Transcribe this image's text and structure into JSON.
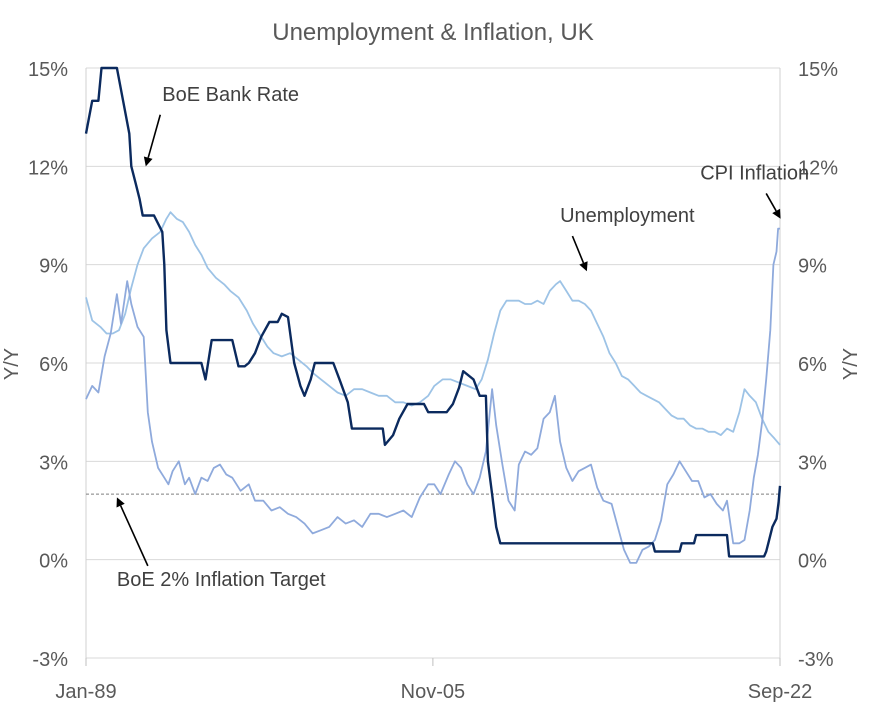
{
  "chart_data": {
    "type": "line",
    "title": "Unemployment & Inflation, UK",
    "ylabel_left": "Y/Y",
    "ylabel_right": "Y/Y",
    "ylim": [
      -3,
      15
    ],
    "yticks": [
      "-3%",
      "0%",
      "3%",
      "6%",
      "9%",
      "12%",
      "15%"
    ],
    "ytick_values": [
      -3,
      0,
      3,
      6,
      9,
      12,
      15
    ],
    "xlim": [
      1989.0,
      2022.67
    ],
    "xticks": [
      "Jan-89",
      "Nov-05",
      "Sep-22"
    ],
    "xtick_values": [
      1989.0,
      2005.83,
      2022.67
    ],
    "grid": true,
    "colors": {
      "bank_rate": "#0b2a5e",
      "cpi": "#8faadc",
      "unemployment": "#9dc3e6",
      "target": "#7f7f7f",
      "grid": "#d9d9d9"
    },
    "series": [
      {
        "key": "bank_rate",
        "points": [
          [
            1989.0,
            13.0
          ],
          [
            1989.3,
            14.0
          ],
          [
            1989.6,
            14.0
          ],
          [
            1989.75,
            15.0
          ],
          [
            1990.5,
            15.0
          ],
          [
            1990.8,
            14.0
          ],
          [
            1991.1,
            13.0
          ],
          [
            1991.2,
            12.0
          ],
          [
            1991.4,
            11.5
          ],
          [
            1991.6,
            11.0
          ],
          [
            1991.75,
            10.5
          ],
          [
            1992.3,
            10.5
          ],
          [
            1992.7,
            10.0
          ],
          [
            1992.8,
            9.0
          ],
          [
            1992.9,
            7.0
          ],
          [
            1993.1,
            6.0
          ],
          [
            1994.6,
            6.0
          ],
          [
            1994.8,
            5.5
          ],
          [
            1995.1,
            6.7
          ],
          [
            1996.1,
            6.7
          ],
          [
            1996.4,
            5.9
          ],
          [
            1996.7,
            5.9
          ],
          [
            1996.9,
            6.0
          ],
          [
            1997.2,
            6.3
          ],
          [
            1997.5,
            6.8
          ],
          [
            1997.9,
            7.25
          ],
          [
            1998.3,
            7.25
          ],
          [
            1998.5,
            7.5
          ],
          [
            1998.8,
            7.4
          ],
          [
            1999.1,
            6.0
          ],
          [
            1999.4,
            5.3
          ],
          [
            1999.6,
            5.0
          ],
          [
            1999.9,
            5.5
          ],
          [
            2000.1,
            6.0
          ],
          [
            2001.0,
            6.0
          ],
          [
            2001.3,
            5.5
          ],
          [
            2001.7,
            4.8
          ],
          [
            2001.9,
            4.0
          ],
          [
            2003.4,
            4.0
          ],
          [
            2003.5,
            3.5
          ],
          [
            2003.9,
            3.8
          ],
          [
            2004.2,
            4.3
          ],
          [
            2004.6,
            4.75
          ],
          [
            2005.4,
            4.75
          ],
          [
            2005.6,
            4.5
          ],
          [
            2006.5,
            4.5
          ],
          [
            2006.8,
            4.75
          ],
          [
            2007.1,
            5.25
          ],
          [
            2007.3,
            5.75
          ],
          [
            2007.8,
            5.5
          ],
          [
            2008.1,
            5.0
          ],
          [
            2008.4,
            5.0
          ],
          [
            2008.5,
            3.0
          ],
          [
            2008.7,
            2.0
          ],
          [
            2008.9,
            1.0
          ],
          [
            2009.1,
            0.5
          ],
          [
            2016.5,
            0.5
          ],
          [
            2016.6,
            0.25
          ],
          [
            2017.8,
            0.25
          ],
          [
            2017.9,
            0.5
          ],
          [
            2018.5,
            0.5
          ],
          [
            2018.6,
            0.75
          ],
          [
            2020.1,
            0.75
          ],
          [
            2020.2,
            0.1
          ],
          [
            2021.9,
            0.1
          ],
          [
            2022.0,
            0.25
          ],
          [
            2022.1,
            0.5
          ],
          [
            2022.3,
            1.0
          ],
          [
            2022.5,
            1.25
          ],
          [
            2022.6,
            1.75
          ],
          [
            2022.67,
            2.25
          ]
        ]
      },
      {
        "key": "cpi",
        "points": [
          [
            1989.0,
            4.9
          ],
          [
            1989.3,
            5.3
          ],
          [
            1989.6,
            5.1
          ],
          [
            1989.9,
            6.2
          ],
          [
            1990.2,
            6.9
          ],
          [
            1990.5,
            8.1
          ],
          [
            1990.7,
            7.2
          ],
          [
            1991.0,
            8.5
          ],
          [
            1991.2,
            7.8
          ],
          [
            1991.5,
            7.1
          ],
          [
            1991.8,
            6.8
          ],
          [
            1992.0,
            4.5
          ],
          [
            1992.2,
            3.6
          ],
          [
            1992.5,
            2.8
          ],
          [
            1992.8,
            2.5
          ],
          [
            1993.0,
            2.3
          ],
          [
            1993.2,
            2.7
          ],
          [
            1993.5,
            3.0
          ],
          [
            1993.8,
            2.3
          ],
          [
            1994.0,
            2.5
          ],
          [
            1994.3,
            2.0
          ],
          [
            1994.6,
            2.5
          ],
          [
            1994.9,
            2.4
          ],
          [
            1995.2,
            2.8
          ],
          [
            1995.5,
            2.9
          ],
          [
            1995.8,
            2.6
          ],
          [
            1996.1,
            2.5
          ],
          [
            1996.5,
            2.1
          ],
          [
            1996.9,
            2.3
          ],
          [
            1997.2,
            1.8
          ],
          [
            1997.6,
            1.8
          ],
          [
            1998.0,
            1.5
          ],
          [
            1998.4,
            1.6
          ],
          [
            1998.8,
            1.4
          ],
          [
            1999.2,
            1.3
          ],
          [
            1999.6,
            1.1
          ],
          [
            2000.0,
            0.8
          ],
          [
            2000.4,
            0.9
          ],
          [
            2000.8,
            1.0
          ],
          [
            2001.2,
            1.3
          ],
          [
            2001.6,
            1.1
          ],
          [
            2002.0,
            1.2
          ],
          [
            2002.4,
            1.0
          ],
          [
            2002.8,
            1.4
          ],
          [
            2003.2,
            1.4
          ],
          [
            2003.6,
            1.3
          ],
          [
            2004.0,
            1.4
          ],
          [
            2004.4,
            1.5
          ],
          [
            2004.8,
            1.3
          ],
          [
            2005.2,
            1.9
          ],
          [
            2005.6,
            2.3
          ],
          [
            2005.9,
            2.3
          ],
          [
            2006.2,
            2.0
          ],
          [
            2006.6,
            2.6
          ],
          [
            2006.9,
            3.0
          ],
          [
            2007.2,
            2.8
          ],
          [
            2007.5,
            2.3
          ],
          [
            2007.8,
            2.0
          ],
          [
            2008.1,
            2.5
          ],
          [
            2008.4,
            3.3
          ],
          [
            2008.7,
            5.2
          ],
          [
            2008.9,
            4.1
          ],
          [
            2009.2,
            2.9
          ],
          [
            2009.5,
            1.8
          ],
          [
            2009.8,
            1.5
          ],
          [
            2010.0,
            2.9
          ],
          [
            2010.3,
            3.3
          ],
          [
            2010.6,
            3.2
          ],
          [
            2010.9,
            3.4
          ],
          [
            2011.2,
            4.3
          ],
          [
            2011.5,
            4.5
          ],
          [
            2011.75,
            5.0
          ],
          [
            2012.0,
            3.6
          ],
          [
            2012.3,
            2.8
          ],
          [
            2012.6,
            2.4
          ],
          [
            2012.9,
            2.7
          ],
          [
            2013.2,
            2.8
          ],
          [
            2013.5,
            2.9
          ],
          [
            2013.8,
            2.2
          ],
          [
            2014.1,
            1.8
          ],
          [
            2014.5,
            1.7
          ],
          [
            2014.8,
            1.0
          ],
          [
            2015.1,
            0.3
          ],
          [
            2015.4,
            -0.1
          ],
          [
            2015.7,
            -0.1
          ],
          [
            2016.0,
            0.3
          ],
          [
            2016.3,
            0.4
          ],
          [
            2016.6,
            0.6
          ],
          [
            2016.9,
            1.2
          ],
          [
            2017.2,
            2.3
          ],
          [
            2017.5,
            2.6
          ],
          [
            2017.8,
            3.0
          ],
          [
            2018.1,
            2.7
          ],
          [
            2018.4,
            2.4
          ],
          [
            2018.7,
            2.4
          ],
          [
            2019.0,
            1.9
          ],
          [
            2019.3,
            2.0
          ],
          [
            2019.6,
            1.7
          ],
          [
            2019.9,
            1.5
          ],
          [
            2020.1,
            1.8
          ],
          [
            2020.4,
            0.5
          ],
          [
            2020.7,
            0.5
          ],
          [
            2020.95,
            0.6
          ],
          [
            2021.2,
            1.5
          ],
          [
            2021.4,
            2.5
          ],
          [
            2021.6,
            3.2
          ],
          [
            2021.8,
            4.2
          ],
          [
            2022.0,
            5.5
          ],
          [
            2022.2,
            7.0
          ],
          [
            2022.35,
            9.0
          ],
          [
            2022.5,
            9.4
          ],
          [
            2022.58,
            10.1
          ],
          [
            2022.67,
            10.1
          ]
        ]
      },
      {
        "key": "unemployment",
        "points": [
          [
            1989.0,
            8.0
          ],
          [
            1989.3,
            7.3
          ],
          [
            1989.7,
            7.1
          ],
          [
            1990.0,
            6.9
          ],
          [
            1990.3,
            6.9
          ],
          [
            1990.6,
            7.0
          ],
          [
            1990.9,
            7.5
          ],
          [
            1991.2,
            8.3
          ],
          [
            1991.5,
            9.0
          ],
          [
            1991.8,
            9.5
          ],
          [
            1992.2,
            9.8
          ],
          [
            1992.6,
            10.0
          ],
          [
            1992.9,
            10.4
          ],
          [
            1993.1,
            10.6
          ],
          [
            1993.4,
            10.4
          ],
          [
            1993.7,
            10.3
          ],
          [
            1994.0,
            10.0
          ],
          [
            1994.3,
            9.6
          ],
          [
            1994.6,
            9.3
          ],
          [
            1994.9,
            8.9
          ],
          [
            1995.3,
            8.6
          ],
          [
            1995.7,
            8.4
          ],
          [
            1996.0,
            8.2
          ],
          [
            1996.4,
            8.0
          ],
          [
            1996.8,
            7.6
          ],
          [
            1997.1,
            7.2
          ],
          [
            1997.4,
            6.9
          ],
          [
            1997.8,
            6.5
          ],
          [
            1998.1,
            6.3
          ],
          [
            1998.5,
            6.2
          ],
          [
            1998.9,
            6.3
          ],
          [
            1999.3,
            6.1
          ],
          [
            1999.7,
            5.9
          ],
          [
            2000.0,
            5.7
          ],
          [
            2000.4,
            5.5
          ],
          [
            2000.8,
            5.3
          ],
          [
            2001.2,
            5.1
          ],
          [
            2001.6,
            5.0
          ],
          [
            2002.0,
            5.2
          ],
          [
            2002.4,
            5.2
          ],
          [
            2002.8,
            5.1
          ],
          [
            2003.2,
            5.0
          ],
          [
            2003.6,
            5.0
          ],
          [
            2004.0,
            4.8
          ],
          [
            2004.4,
            4.8
          ],
          [
            2004.8,
            4.7
          ],
          [
            2005.2,
            4.8
          ],
          [
            2005.6,
            5.0
          ],
          [
            2005.9,
            5.3
          ],
          [
            2006.3,
            5.5
          ],
          [
            2006.7,
            5.5
          ],
          [
            2007.1,
            5.4
          ],
          [
            2007.5,
            5.3
          ],
          [
            2007.9,
            5.2
          ],
          [
            2008.2,
            5.5
          ],
          [
            2008.5,
            6.1
          ],
          [
            2008.8,
            6.9
          ],
          [
            2009.1,
            7.6
          ],
          [
            2009.4,
            7.9
          ],
          [
            2009.7,
            7.9
          ],
          [
            2010.0,
            7.9
          ],
          [
            2010.3,
            7.8
          ],
          [
            2010.6,
            7.8
          ],
          [
            2010.9,
            7.9
          ],
          [
            2011.2,
            7.8
          ],
          [
            2011.5,
            8.2
          ],
          [
            2011.8,
            8.4
          ],
          [
            2012.0,
            8.5
          ],
          [
            2012.3,
            8.2
          ],
          [
            2012.6,
            7.9
          ],
          [
            2012.9,
            7.9
          ],
          [
            2013.2,
            7.8
          ],
          [
            2013.5,
            7.6
          ],
          [
            2013.8,
            7.2
          ],
          [
            2014.1,
            6.8
          ],
          [
            2014.4,
            6.3
          ],
          [
            2014.7,
            6.0
          ],
          [
            2015.0,
            5.6
          ],
          [
            2015.3,
            5.5
          ],
          [
            2015.6,
            5.3
          ],
          [
            2015.9,
            5.1
          ],
          [
            2016.2,
            5.0
          ],
          [
            2016.5,
            4.9
          ],
          [
            2016.8,
            4.8
          ],
          [
            2017.1,
            4.6
          ],
          [
            2017.4,
            4.4
          ],
          [
            2017.7,
            4.3
          ],
          [
            2018.0,
            4.3
          ],
          [
            2018.3,
            4.1
          ],
          [
            2018.6,
            4.0
          ],
          [
            2018.9,
            4.0
          ],
          [
            2019.2,
            3.9
          ],
          [
            2019.5,
            3.9
          ],
          [
            2019.8,
            3.8
          ],
          [
            2020.1,
            4.0
          ],
          [
            2020.4,
            3.9
          ],
          [
            2020.7,
            4.5
          ],
          [
            2020.95,
            5.2
          ],
          [
            2021.2,
            5.0
          ],
          [
            2021.5,
            4.8
          ],
          [
            2021.8,
            4.3
          ],
          [
            2022.1,
            3.9
          ],
          [
            2022.4,
            3.7
          ],
          [
            2022.67,
            3.5
          ]
        ]
      },
      {
        "key": "target",
        "points": [
          [
            1989.0,
            2.0
          ],
          [
            2022.67,
            2.0
          ]
        ]
      }
    ],
    "annotations": [
      {
        "key": "bank_rate",
        "text": "BoE Bank Rate",
        "x": 1992.7,
        "y": 14.0,
        "arrow_to": [
          1991.9,
          12.0
        ]
      },
      {
        "key": "cpi",
        "text": "CPI Inflation",
        "x": 2018.8,
        "y": 11.6,
        "arrow_to": [
          2022.7,
          10.4
        ]
      },
      {
        "key": "unemployment",
        "text": "Unemployment",
        "x": 2012.0,
        "y": 10.3,
        "arrow_to": [
          2013.3,
          8.8
        ]
      },
      {
        "key": "target",
        "text": "BoE 2% Inflation Target",
        "x": 1990.5,
        "y": -0.8,
        "arrow_to": [
          1990.5,
          1.9
        ]
      }
    ]
  }
}
